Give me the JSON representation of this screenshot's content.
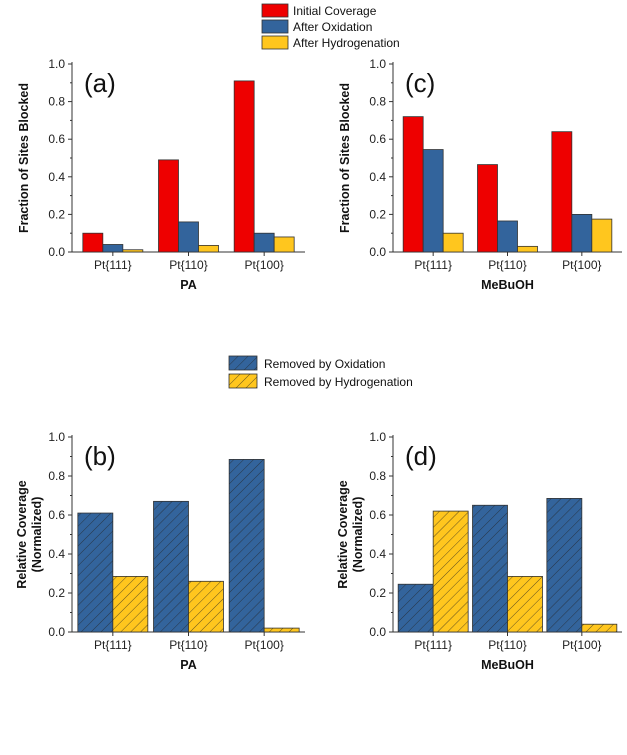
{
  "colors": {
    "initial": "#ee0000",
    "oxidation": "#33649c",
    "hydrogenation": "#ffc61e"
  },
  "legend_top": [
    "Initial Coverage",
    "After Oxidation",
    "After Hydrogenation"
  ],
  "legend_bottom": [
    "Removed by Oxidation",
    "Removed by Hydrogenation"
  ],
  "chart_data": [
    {
      "panel": "(a)",
      "type": "bar",
      "xlabel": "PA",
      "ylabel": "Fraction of Sites Blocked",
      "ylim": [
        0,
        1
      ],
      "yticks": [
        "0.0",
        "0.2",
        "0.4",
        "0.6",
        "0.8",
        "1.0"
      ],
      "categories": [
        "Pt{111}",
        "Pt{110}",
        "Pt{100}"
      ],
      "series": [
        {
          "name": "Initial Coverage",
          "values": [
            0.1,
            0.49,
            0.91
          ]
        },
        {
          "name": "After Oxidation",
          "values": [
            0.04,
            0.16,
            0.1
          ]
        },
        {
          "name": "After Hydrogenation",
          "values": [
            0.012,
            0.035,
            0.08
          ]
        }
      ]
    },
    {
      "panel": "(c)",
      "type": "bar",
      "xlabel": "MeBuOH",
      "ylabel": "Fraction of Sites Blocked",
      "ylim": [
        0,
        1
      ],
      "yticks": [
        "0.0",
        "0.2",
        "0.4",
        "0.6",
        "0.8",
        "1.0"
      ],
      "categories": [
        "Pt{111}",
        "Pt{110}",
        "Pt{100}"
      ],
      "series": [
        {
          "name": "Initial Coverage",
          "values": [
            0.72,
            0.465,
            0.64
          ]
        },
        {
          "name": "After Oxidation",
          "values": [
            0.545,
            0.165,
            0.2
          ]
        },
        {
          "name": "After Hydrogenation",
          "values": [
            0.1,
            0.03,
            0.175
          ]
        }
      ]
    },
    {
      "panel": "(b)",
      "type": "bar",
      "xlabel": "PA",
      "ylabel": "Relative Coverage (Normalized)",
      "ylim": [
        0,
        1
      ],
      "yticks": [
        "0.0",
        "0.2",
        "0.4",
        "0.6",
        "0.8",
        "1.0"
      ],
      "categories": [
        "Pt{111}",
        "Pt{110}",
        "Pt{100}"
      ],
      "series": [
        {
          "name": "Removed by Oxidation",
          "values": [
            0.61,
            0.67,
            0.885
          ]
        },
        {
          "name": "Removed by Hydrogenation",
          "values": [
            0.285,
            0.26,
            0.02
          ]
        }
      ]
    },
    {
      "panel": "(d)",
      "type": "bar",
      "xlabel": "MeBuOH",
      "ylabel": "Relative Coverage (Normalized)",
      "ylim": [
        0,
        1
      ],
      "yticks": [
        "0.0",
        "0.2",
        "0.4",
        "0.6",
        "0.8",
        "1.0"
      ],
      "categories": [
        "Pt{111}",
        "Pt{110}",
        "Pt{100}"
      ],
      "series": [
        {
          "name": "Removed by Oxidation",
          "values": [
            0.245,
            0.65,
            0.685
          ]
        },
        {
          "name": "Removed by Hydrogenation",
          "values": [
            0.62,
            0.285,
            0.04
          ]
        }
      ]
    }
  ]
}
